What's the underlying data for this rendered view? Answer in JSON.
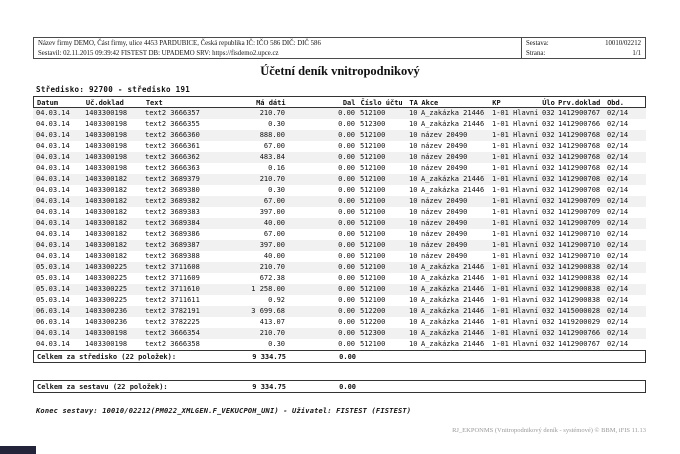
{
  "page_header": {
    "company_line": "Název firmy DEMO, Část firmy, ulice 4453 PARDUBICE, Česká republika IČ: IČO 586  DIČ: DIČ 586",
    "generated_line": "Sestavil: 02.11.2015 09:39:42 FISTEST  DB: UPADEMO  SRV: https://fisdemo2.upce.cz",
    "sestava_label": "Sestava:",
    "sestava_value": "10010/02212",
    "strana_label": "Strana:",
    "strana_value": "1/1"
  },
  "title": "Účetní deník vnitropodnikový",
  "section": {
    "stredisko_line": "Středisko: 92700 - středisko 191"
  },
  "table": {
    "headers": {
      "datum": "Datum",
      "doklad": "Uč.doklad",
      "text": "Text",
      "madati": "Má dáti",
      "dal": "Dal",
      "ucet": "Číslo účtu",
      "ta": "TA",
      "akce": "Akce",
      "kp": "KP",
      "ulo": "Úlo",
      "prv": "Prv.doklad",
      "obd": "Obd."
    },
    "rows": [
      {
        "datum": "04.03.14",
        "doklad": "1403300198",
        "text": "text2 3666357",
        "madati": "210.70",
        "dal": "0.00",
        "ucet": "512100",
        "ta": "10",
        "akce": "A_zakázka 21446",
        "kp": "1-01 Hlavní",
        "ulo": "032",
        "prv": "1412900767",
        "obd": "02/14"
      },
      {
        "datum": "04.03.14",
        "doklad": "1403300198",
        "text": "text2 3666355",
        "madati": "0.30",
        "dal": "0.00",
        "ucet": "512300",
        "ta": "10",
        "akce": "A_zakázka 21446",
        "kp": "1-01 Hlavní",
        "ulo": "032",
        "prv": "1412900766",
        "obd": "02/14"
      },
      {
        "datum": "04.03.14",
        "doklad": "1403300198",
        "text": "text2 3666360",
        "madati": "888.00",
        "dal": "0.00",
        "ucet": "512100",
        "ta": "10",
        "akce": "název 20490",
        "kp": "1-01 Hlavní",
        "ulo": "032",
        "prv": "1412900768",
        "obd": "02/14"
      },
      {
        "datum": "04.03.14",
        "doklad": "1403300198",
        "text": "text2 3666361",
        "madati": "67.00",
        "dal": "0.00",
        "ucet": "512100",
        "ta": "10",
        "akce": "název 20490",
        "kp": "1-01 Hlavní",
        "ulo": "032",
        "prv": "1412900768",
        "obd": "02/14"
      },
      {
        "datum": "04.03.14",
        "doklad": "1403300198",
        "text": "text2 3666362",
        "madati": "483.84",
        "dal": "0.00",
        "ucet": "512100",
        "ta": "10",
        "akce": "název 20490",
        "kp": "1-01 Hlavní",
        "ulo": "032",
        "prv": "1412900768",
        "obd": "02/14"
      },
      {
        "datum": "04.03.14",
        "doklad": "1403300198",
        "text": "text2 3666363",
        "madati": "0.16",
        "dal": "0.00",
        "ucet": "512100",
        "ta": "10",
        "akce": "název 20490",
        "kp": "1-01 Hlavní",
        "ulo": "032",
        "prv": "1412900768",
        "obd": "02/14"
      },
      {
        "datum": "04.03.14",
        "doklad": "1403300182",
        "text": "text2 3689379",
        "madati": "210.70",
        "dal": "0.00",
        "ucet": "512100",
        "ta": "10",
        "akce": "A_zakázka 21446",
        "kp": "1-01 Hlavní",
        "ulo": "032",
        "prv": "1412900708",
        "obd": "02/14"
      },
      {
        "datum": "04.03.14",
        "doklad": "1403300182",
        "text": "text2 3689380",
        "madati": "0.30",
        "dal": "0.00",
        "ucet": "512100",
        "ta": "10",
        "akce": "A_zakázka 21446",
        "kp": "1-01 Hlavní",
        "ulo": "032",
        "prv": "1412900708",
        "obd": "02/14"
      },
      {
        "datum": "04.03.14",
        "doklad": "1403300182",
        "text": "text2 3689382",
        "madati": "67.00",
        "dal": "0.00",
        "ucet": "512100",
        "ta": "10",
        "akce": "název 20490",
        "kp": "1-01 Hlavní",
        "ulo": "032",
        "prv": "1412900709",
        "obd": "02/14"
      },
      {
        "datum": "04.03.14",
        "doklad": "1403300182",
        "text": "text2 3689383",
        "madati": "397.00",
        "dal": "0.00",
        "ucet": "512100",
        "ta": "10",
        "akce": "název 20490",
        "kp": "1-01 Hlavní",
        "ulo": "032",
        "prv": "1412900709",
        "obd": "02/14"
      },
      {
        "datum": "04.03.14",
        "doklad": "1403300182",
        "text": "text2 3689384",
        "madati": "40.00",
        "dal": "0.00",
        "ucet": "512100",
        "ta": "10",
        "akce": "název 20490",
        "kp": "1-01 Hlavní",
        "ulo": "032",
        "prv": "1412900709",
        "obd": "02/14"
      },
      {
        "datum": "04.03.14",
        "doklad": "1403300182",
        "text": "text2 3689386",
        "madati": "67.00",
        "dal": "0.00",
        "ucet": "512100",
        "ta": "10",
        "akce": "název 20490",
        "kp": "1-01 Hlavní",
        "ulo": "032",
        "prv": "1412900710",
        "obd": "02/14"
      },
      {
        "datum": "04.03.14",
        "doklad": "1403300182",
        "text": "text2 3689387",
        "madati": "397.00",
        "dal": "0.00",
        "ucet": "512100",
        "ta": "10",
        "akce": "název 20490",
        "kp": "1-01 Hlavní",
        "ulo": "032",
        "prv": "1412900710",
        "obd": "02/14"
      },
      {
        "datum": "04.03.14",
        "doklad": "1403300182",
        "text": "text2 3689388",
        "madati": "40.00",
        "dal": "0.00",
        "ucet": "512100",
        "ta": "10",
        "akce": "název 20490",
        "kp": "1-01 Hlavní",
        "ulo": "032",
        "prv": "1412900710",
        "obd": "02/14"
      },
      {
        "datum": "05.03.14",
        "doklad": "1403300225",
        "text": "text2 3711608",
        "madati": "210.70",
        "dal": "0.00",
        "ucet": "512100",
        "ta": "10",
        "akce": "A_zakázka 21446",
        "kp": "1-01 Hlavní",
        "ulo": "032",
        "prv": "1412900838",
        "obd": "02/14"
      },
      {
        "datum": "05.03.14",
        "doklad": "1403300225",
        "text": "text2 3711609",
        "madati": "672.38",
        "dal": "0.00",
        "ucet": "512100",
        "ta": "10",
        "akce": "A_zakázka 21446",
        "kp": "1-01 Hlavní",
        "ulo": "032",
        "prv": "1412900838",
        "obd": "02/14"
      },
      {
        "datum": "05.03.14",
        "doklad": "1403300225",
        "text": "text2 3711610",
        "madati": "1 258.00",
        "dal": "0.00",
        "ucet": "512100",
        "ta": "10",
        "akce": "A_zakázka 21446",
        "kp": "1-01 Hlavní",
        "ulo": "032",
        "prv": "1412900838",
        "obd": "02/14"
      },
      {
        "datum": "05.03.14",
        "doklad": "1403300225",
        "text": "text2 3711611",
        "madati": "0.92",
        "dal": "0.00",
        "ucet": "512100",
        "ta": "10",
        "akce": "A_zakázka 21446",
        "kp": "1-01 Hlavní",
        "ulo": "032",
        "prv": "1412900838",
        "obd": "02/14"
      },
      {
        "datum": "06.03.14",
        "doklad": "1403300236",
        "text": "text2 3782191",
        "madati": "3 699.68",
        "dal": "0.00",
        "ucet": "512200",
        "ta": "10",
        "akce": "A_zakázka 21446",
        "kp": "1-01 Hlavní",
        "ulo": "032",
        "prv": "1415000028",
        "obd": "02/14"
      },
      {
        "datum": "06.03.14",
        "doklad": "1403300236",
        "text": "text2 3782225",
        "madati": "413.07",
        "dal": "0.00",
        "ucet": "512200",
        "ta": "10",
        "akce": "A_zakázka 21446",
        "kp": "1-01 Hlavní",
        "ulo": "032",
        "prv": "1419200029",
        "obd": "02/14"
      },
      {
        "datum": "04.03.14",
        "doklad": "1403300198",
        "text": "text2 3666354",
        "madati": "210.70",
        "dal": "0.00",
        "ucet": "512300",
        "ta": "10",
        "akce": "A_zakázka 21446",
        "kp": "1-01 Hlavní",
        "ulo": "032",
        "prv": "1412900766",
        "obd": "02/14"
      },
      {
        "datum": "04.03.14",
        "doklad": "1403300198",
        "text": "text2 3666358",
        "madati": "0.30",
        "dal": "0.00",
        "ucet": "512100",
        "ta": "10",
        "akce": "A_zakázka 21446",
        "kp": "1-01 Hlavní",
        "ulo": "032",
        "prv": "1412900767",
        "obd": "02/14"
      }
    ],
    "totals": {
      "stredisko_label": "Celkem za středisko (22 položek):",
      "stredisko_madati": "9 334.75",
      "stredisko_dal": "0.00",
      "sestava_label": "Celkem za sestavu (22 položek):",
      "sestava_madati": "9 334.75",
      "sestava_dal": "0.00"
    }
  },
  "footer": {
    "konec_line": "Konec sestavy: 10010/02212(PM022_XMLGEN.F_VEKUCPOH_UNI) - Uživatel: FISTEST (FISTEST)",
    "report_id_line": "RJ_EKPONMS (Vnitropodnikový deník - systémové) © BBM, iFIS 11.13"
  },
  "colors": {
    "stripe": "#f1f1f1",
    "border": "#333333",
    "muted_text": "#9a9a9a"
  }
}
